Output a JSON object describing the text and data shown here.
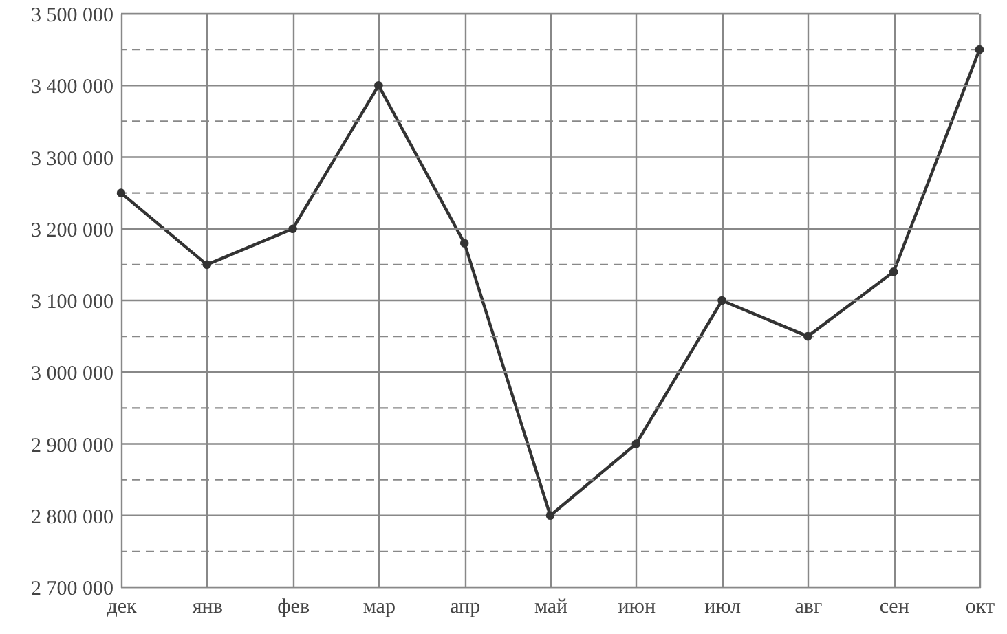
{
  "chart_data": {
    "type": "line",
    "categories": [
      "дек",
      "янв",
      "фев",
      "мар",
      "апр",
      "май",
      "июн",
      "июл",
      "авг",
      "сен",
      "окт"
    ],
    "series": [
      {
        "color": "#333333",
        "values": [
          3250000,
          3150000,
          3200000,
          3400000,
          3180000,
          2800000,
          2900000,
          3100000,
          3050000,
          3140000,
          3450000
        ]
      }
    ],
    "ylim": [
      2700000,
      3500000
    ],
    "yticks": [
      {
        "value": 2700000,
        "label": "2 700 000"
      },
      {
        "value": 2750000,
        "label": null
      },
      {
        "value": 2800000,
        "label": "2 800 000"
      },
      {
        "value": 2850000,
        "label": null
      },
      {
        "value": 2900000,
        "label": "2 900 000"
      },
      {
        "value": 2950000,
        "label": null
      },
      {
        "value": 3000000,
        "label": "3 000 000"
      },
      {
        "value": 3050000,
        "label": null
      },
      {
        "value": 3100000,
        "label": "3 100 000"
      },
      {
        "value": 3150000,
        "label": null
      },
      {
        "value": 3200000,
        "label": "3 200 000"
      },
      {
        "value": 3250000,
        "label": null
      },
      {
        "value": 3300000,
        "label": "3 300 000"
      },
      {
        "value": 3350000,
        "label": null
      },
      {
        "value": 3400000,
        "label": "3 400 000"
      },
      {
        "value": 3450000,
        "label": null
      },
      {
        "value": 3500000,
        "label": "3 500 000"
      }
    ],
    "grid": true,
    "marker": "circle",
    "line_style": "solid"
  }
}
